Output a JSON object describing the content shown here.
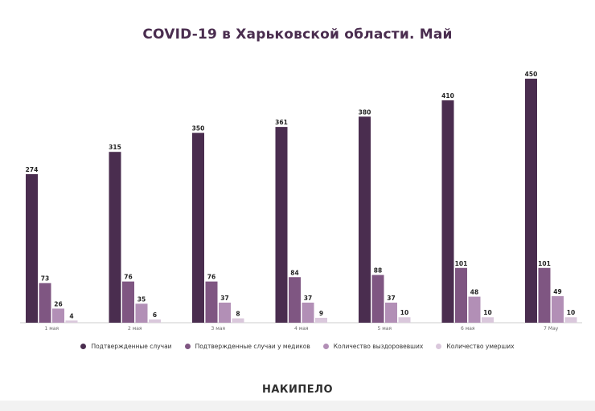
{
  "chart_data": {
    "type": "bar",
    "title": "COVID-19 в Харьковской области. Май",
    "categories": [
      "1 мая",
      "2 мая",
      "3 мая",
      "4 мая",
      "5 мая",
      "6 мая",
      "7 May"
    ],
    "series": [
      {
        "name": "Подтвержденные случаи",
        "color": "#4a2d4f",
        "values": [
          274,
          315,
          350,
          361,
          380,
          410,
          450
        ]
      },
      {
        "name": "Подтвержденные случаи у медиков",
        "color": "#7f5682",
        "values": [
          73,
          76,
          76,
          84,
          88,
          101,
          101
        ]
      },
      {
        "name": "Количество выздоровевших",
        "color": "#b28fb6",
        "values": [
          26,
          35,
          37,
          37,
          37,
          48,
          49
        ]
      },
      {
        "name": "Количество умерших",
        "color": "#dac8dc",
        "values": [
          4,
          6,
          8,
          9,
          10,
          10,
          10
        ]
      }
    ],
    "ylim": [
      0,
      450
    ],
    "grid": false,
    "legend_position": "bottom"
  },
  "logo": {
    "text": "НАКИПЕЛО"
  }
}
